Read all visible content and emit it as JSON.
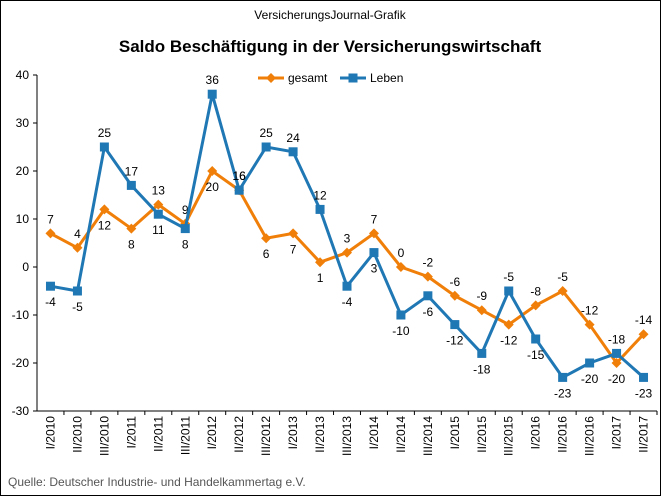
{
  "header": "VersicherungsJournal-Grafik",
  "source": "Quelle: Deutscher Industrie- und Handelkammertag e.V.",
  "chart_data": {
    "type": "line",
    "title": "Saldo Beschäftigung in der Versicherungswirtschaft",
    "categories": [
      "I/2010",
      "II/2010",
      "III/2010",
      "I/2011",
      "II/2011",
      "III/2011",
      "I/2012",
      "II/2012",
      "III/2012",
      "I/2013",
      "II/2013",
      "III/2013",
      "I/2014",
      "II/2014",
      "III/2014",
      "I/2015",
      "II/2015",
      "III/2015",
      "I/2016",
      "II/2016",
      "III/2016",
      "I/2017",
      "II/2017"
    ],
    "series": [
      {
        "name": "gesamt",
        "color": "#f07f09",
        "marker": "diamond",
        "values": [
          7,
          4,
          12,
          8,
          13,
          9,
          20,
          16,
          6,
          7,
          1,
          3,
          7,
          0,
          -2,
          -6,
          -9,
          -12,
          -8,
          -5,
          -12,
          -20,
          -14
        ]
      },
      {
        "name": "Leben",
        "color": "#1f77b4",
        "marker": "square",
        "values": [
          -4,
          -5,
          25,
          17,
          11,
          8,
          36,
          16,
          25,
          24,
          12,
          -4,
          3,
          -10,
          -6,
          -12,
          -18,
          -5,
          -15,
          -23,
          -20,
          -18,
          -23
        ]
      }
    ],
    "ylim": [
      -30,
      40
    ],
    "yticks": [
      -30,
      -20,
      -10,
      0,
      10,
      20,
      30,
      40
    ],
    "grid": false,
    "legend": "top",
    "data_labels": true
  }
}
